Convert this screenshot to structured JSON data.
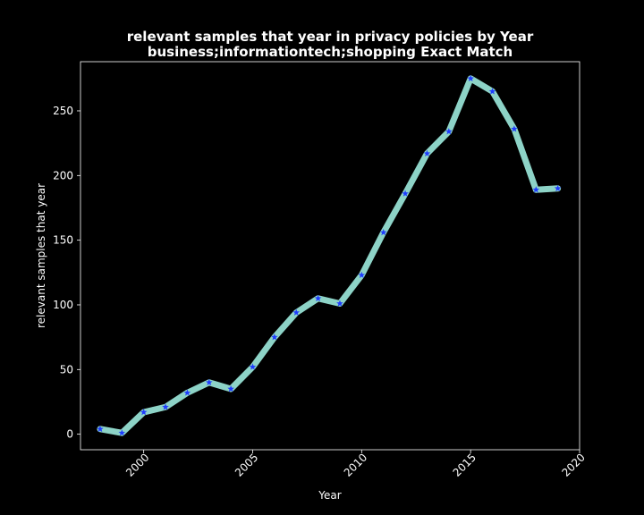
{
  "chart_data": {
    "type": "line",
    "title": "relevant samples that year in privacy policies by Year",
    "subtitle": "business;informationtech;shopping Exact Match",
    "xlabel": "Year",
    "ylabel": "relevant samples that year",
    "xlim": [
      1997.1,
      2020.0
    ],
    "ylim": [
      -12,
      288
    ],
    "xticks": [
      2000,
      2005,
      2010,
      2015,
      2020
    ],
    "yticks": [
      0,
      50,
      100,
      150,
      200,
      250
    ],
    "grid": false,
    "series": [
      {
        "line_color": "#8dd3c7",
        "marker_color": "#1f3cff",
        "marker": "star",
        "x": [
          1998,
          1999,
          2000,
          2001,
          2002,
          2003,
          2004,
          2005,
          2006,
          2007,
          2008,
          2009,
          2010,
          2011,
          2012,
          2013,
          2014,
          2015,
          2016,
          2017,
          2018,
          2019
        ],
        "values": [
          4,
          1,
          17,
          21,
          32,
          40,
          35,
          52,
          75,
          94,
          105,
          101,
          123,
          156,
          186,
          217,
          234,
          275,
          265,
          236,
          189,
          190
        ]
      }
    ]
  }
}
